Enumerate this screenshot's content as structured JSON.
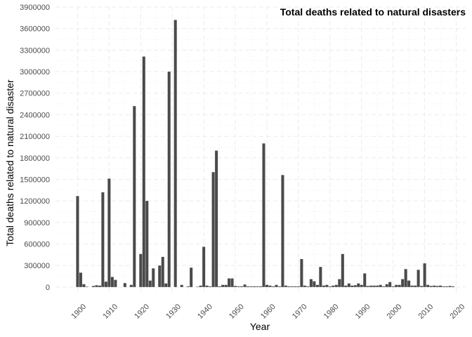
{
  "chart_data": {
    "type": "bar",
    "title": "Total deaths related to natural disasters",
    "xlabel": "Year",
    "ylabel": "Total deaths related to natural disaster",
    "xlim": [
      1893,
      2023
    ],
    "ylim": [
      -70000,
      3900000
    ],
    "xticks": [
      1900,
      1910,
      1920,
      1930,
      1940,
      1950,
      1960,
      1970,
      1980,
      1990,
      2000,
      2010,
      2020
    ],
    "yticks": [
      0,
      300000,
      600000,
      900000,
      1200000,
      1500000,
      1800000,
      2100000,
      2400000,
      2700000,
      3000000,
      3300000,
      3600000,
      3900000
    ],
    "grid": true,
    "bar_color": "#4a4a4a",
    "x": [
      1900,
      1901,
      1902,
      1903,
      1905,
      1906,
      1907,
      1908,
      1909,
      1910,
      1911,
      1912,
      1915,
      1917,
      1918,
      1920,
      1921,
      1922,
      1923,
      1924,
      1926,
      1927,
      1928,
      1929,
      1931,
      1933,
      1935,
      1936,
      1938,
      1939,
      1940,
      1941,
      1942,
      1943,
      1944,
      1945,
      1946,
      1947,
      1948,
      1949,
      1950,
      1951,
      1952,
      1953,
      1954,
      1955,
      1956,
      1957,
      1958,
      1959,
      1960,
      1961,
      1962,
      1963,
      1964,
      1965,
      1966,
      1967,
      1968,
      1969,
      1970,
      1971,
      1972,
      1973,
      1974,
      1975,
      1976,
      1977,
      1978,
      1979,
      1980,
      1981,
      1982,
      1983,
      1984,
      1985,
      1986,
      1987,
      1988,
      1989,
      1990,
      1991,
      1992,
      1993,
      1994,
      1995,
      1996,
      1997,
      1998,
      1999,
      2000,
      2001,
      2002,
      2003,
      2004,
      2005,
      2006,
      2007,
      2008,
      2009,
      2010,
      2011,
      2012,
      2013,
      2014,
      2015,
      2016,
      2017,
      2018,
      2019
    ],
    "values": [
      1267000,
      200000,
      40000,
      5000,
      15000,
      25000,
      20000,
      1320000,
      75000,
      1510000,
      140000,
      100000,
      55000,
      30000,
      2520000,
      460000,
      3210000,
      1200000,
      90000,
      260000,
      300000,
      420000,
      50000,
      3000000,
      3720000,
      30000,
      10000,
      270000,
      5000,
      20000,
      560000,
      20000,
      10000,
      1600000,
      1900000,
      10000,
      30000,
      30000,
      120000,
      120000,
      15000,
      10000,
      10000,
      35000,
      10000,
      10000,
      10000,
      10000,
      10000,
      2000000,
      30000,
      20000,
      10000,
      30000,
      10000,
      1560000,
      20000,
      10000,
      10000,
      10000,
      10000,
      390000,
      20000,
      10000,
      110000,
      80000,
      30000,
      280000,
      20000,
      30000,
      10000,
      20000,
      30000,
      110000,
      460000,
      20000,
      50000,
      20000,
      25000,
      50000,
      30000,
      190000,
      15000,
      20000,
      20000,
      20000,
      30000,
      10000,
      40000,
      70000,
      10000,
      30000,
      30000,
      110000,
      250000,
      90000,
      20000,
      20000,
      240000,
      15000,
      330000,
      30000,
      15000,
      20000,
      15000,
      20000,
      10000,
      10000,
      15000,
      10000
    ]
  }
}
